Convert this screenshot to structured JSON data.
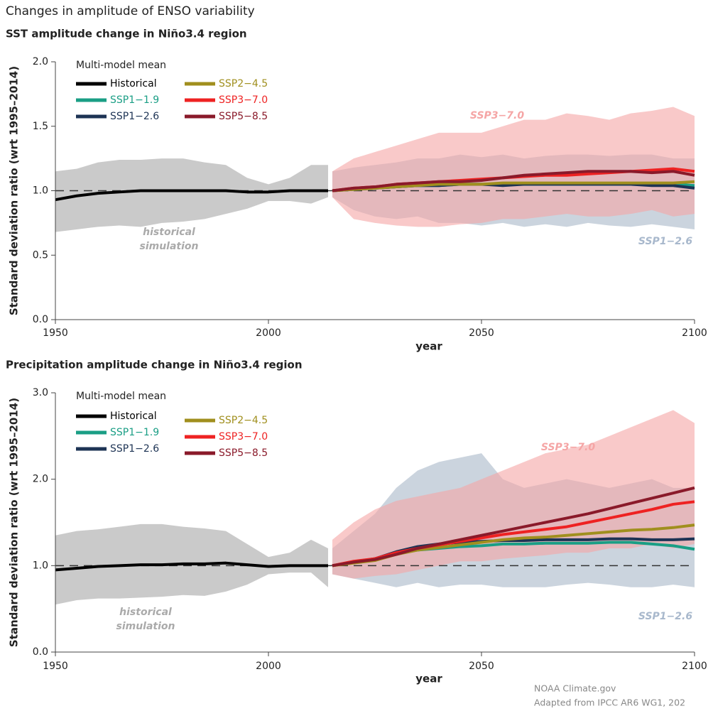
{
  "title": "Changes in amplitude of ENSO variability",
  "credit": [
    "NOAA Climate.gov",
    "Adapted from IPCC AR6 WG1, 202"
  ],
  "chart_data": [
    {
      "type": "line",
      "title": "SST amplitude change in Niño3.4 region",
      "xlabel": "year",
      "ylabel": "Standard deviation ratio (wrt 1995–2014)",
      "legend_title": "Multi-model mean",
      "xlim": [
        1950,
        2100
      ],
      "xticks": [
        1950,
        2000,
        2050,
        2100
      ],
      "ylim": [
        0,
        2
      ],
      "yticks": [
        {
          "value": 0,
          "label": "0.0"
        },
        {
          "value": 0.5,
          "label": "0.5"
        },
        {
          "value": 1,
          "label": "1.0"
        },
        {
          "value": 1.5,
          "label": "1.5"
        },
        {
          "value": 2,
          "label": "2.0"
        }
      ],
      "hline": 1,
      "bands": [
        {
          "label": [
            "historical",
            "simulation"
          ],
          "color": "#b8b8b8",
          "x": [
            1950,
            1955,
            1960,
            1965,
            1970,
            1975,
            1980,
            1985,
            1990,
            1995,
            2000,
            2005,
            2010,
            2014
          ],
          "lower": [
            0.68,
            0.7,
            0.72,
            0.73,
            0.72,
            0.75,
            0.76,
            0.78,
            0.82,
            0.86,
            0.92,
            0.92,
            0.9,
            0.95
          ],
          "upper": [
            1.15,
            1.17,
            1.22,
            1.24,
            1.24,
            1.25,
            1.25,
            1.22,
            1.2,
            1.1,
            1.05,
            1.1,
            1.2,
            1.2
          ]
        },
        {
          "label": [
            "SSP1−2.6"
          ],
          "color": "#b9c6d3",
          "x": [
            2015,
            2020,
            2025,
            2030,
            2035,
            2040,
            2045,
            2050,
            2055,
            2060,
            2065,
            2070,
            2075,
            2080,
            2085,
            2090,
            2095,
            2100
          ],
          "lower": [
            0.95,
            0.85,
            0.8,
            0.78,
            0.8,
            0.75,
            0.75,
            0.73,
            0.75,
            0.72,
            0.74,
            0.72,
            0.75,
            0.73,
            0.72,
            0.74,
            0.72,
            0.7
          ],
          "upper": [
            1.15,
            1.18,
            1.2,
            1.22,
            1.25,
            1.25,
            1.28,
            1.26,
            1.28,
            1.25,
            1.27,
            1.28,
            1.28,
            1.27,
            1.28,
            1.28,
            1.25,
            1.25
          ]
        },
        {
          "label": [
            "SSP3−7.0"
          ],
          "color": "#f5a5a5",
          "x": [
            2015,
            2020,
            2025,
            2030,
            2035,
            2040,
            2045,
            2050,
            2055,
            2060,
            2065,
            2070,
            2075,
            2080,
            2085,
            2090,
            2095,
            2100
          ],
          "lower": [
            0.95,
            0.78,
            0.75,
            0.73,
            0.72,
            0.72,
            0.74,
            0.75,
            0.78,
            0.78,
            0.8,
            0.82,
            0.8,
            0.8,
            0.82,
            0.85,
            0.8,
            0.82
          ],
          "upper": [
            1.15,
            1.25,
            1.3,
            1.35,
            1.4,
            1.45,
            1.45,
            1.45,
            1.5,
            1.55,
            1.55,
            1.6,
            1.58,
            1.55,
            1.6,
            1.62,
            1.65,
            1.58
          ]
        }
      ],
      "series": [
        {
          "name": "Historical",
          "color": "#000000",
          "x": [
            1950,
            1955,
            1960,
            1965,
            1970,
            1975,
            1980,
            1985,
            1990,
            1995,
            2000,
            2005,
            2010,
            2014
          ],
          "values": [
            0.93,
            0.96,
            0.98,
            0.99,
            1.0,
            1.0,
            1.0,
            1.0,
            1.0,
            0.99,
            0.99,
            1.0,
            1.0,
            1.0
          ]
        },
        {
          "name": "SSP1−1.9",
          "color": "#1a9e85",
          "x": [
            2015,
            2020,
            2025,
            2030,
            2035,
            2040,
            2045,
            2050,
            2055,
            2060,
            2065,
            2070,
            2075,
            2080,
            2085,
            2090,
            2095,
            2100
          ],
          "values": [
            1.0,
            1.01,
            1.02,
            1.03,
            1.04,
            1.04,
            1.05,
            1.05,
            1.05,
            1.05,
            1.05,
            1.05,
            1.05,
            1.05,
            1.05,
            1.05,
            1.05,
            1.04
          ]
        },
        {
          "name": "SSP1−2.6",
          "color": "#1d3354",
          "x": [
            2015,
            2020,
            2025,
            2030,
            2035,
            2040,
            2045,
            2050,
            2055,
            2060,
            2065,
            2070,
            2075,
            2080,
            2085,
            2090,
            2095,
            2100
          ],
          "values": [
            1.0,
            1.01,
            1.02,
            1.03,
            1.04,
            1.04,
            1.05,
            1.05,
            1.04,
            1.05,
            1.05,
            1.05,
            1.05,
            1.05,
            1.05,
            1.04,
            1.04,
            1.02
          ]
        },
        {
          "name": "SSP2−4.5",
          "color": "#a08f1e",
          "x": [
            2015,
            2020,
            2025,
            2030,
            2035,
            2040,
            2045,
            2050,
            2055,
            2060,
            2065,
            2070,
            2075,
            2080,
            2085,
            2090,
            2095,
            2100
          ],
          "values": [
            1.0,
            1.01,
            1.02,
            1.03,
            1.04,
            1.05,
            1.05,
            1.05,
            1.06,
            1.06,
            1.06,
            1.06,
            1.06,
            1.06,
            1.06,
            1.06,
            1.06,
            1.07
          ]
        },
        {
          "name": "SSP3−7.0",
          "color": "#ee2222",
          "x": [
            2015,
            2020,
            2025,
            2030,
            2035,
            2040,
            2045,
            2050,
            2055,
            2060,
            2065,
            2070,
            2075,
            2080,
            2085,
            2090,
            2095,
            2100
          ],
          "values": [
            1.0,
            1.02,
            1.03,
            1.05,
            1.06,
            1.07,
            1.08,
            1.09,
            1.1,
            1.11,
            1.12,
            1.12,
            1.13,
            1.14,
            1.15,
            1.16,
            1.17,
            1.15
          ]
        },
        {
          "name": "SSP5−8.5",
          "color": "#8a1a2a",
          "x": [
            2015,
            2020,
            2025,
            2030,
            2035,
            2040,
            2045,
            2050,
            2055,
            2060,
            2065,
            2070,
            2075,
            2080,
            2085,
            2090,
            2095,
            2100
          ],
          "values": [
            1.0,
            1.02,
            1.03,
            1.05,
            1.06,
            1.07,
            1.07,
            1.08,
            1.1,
            1.12,
            1.13,
            1.14,
            1.15,
            1.15,
            1.15,
            1.14,
            1.15,
            1.12
          ]
        }
      ]
    },
    {
      "type": "line",
      "title": "Precipitation amplitude change in Niño3.4 region",
      "xlabel": "year",
      "ylabel": "Standard deviation ratio (wrt 1995–2014)",
      "legend_title": "Multi-model mean",
      "xlim": [
        1950,
        2100
      ],
      "xticks": [
        1950,
        2000,
        2050,
        2100
      ],
      "ylim": [
        0,
        3
      ],
      "yticks": [
        {
          "value": 0,
          "label": "0.0"
        },
        {
          "value": 1,
          "label": "1.0"
        },
        {
          "value": 2,
          "label": "2.0"
        },
        {
          "value": 3,
          "label": "3.0"
        }
      ],
      "hline": 1,
      "bands": [
        {
          "label": [
            "historical",
            "simulation"
          ],
          "color": "#b8b8b8",
          "x": [
            1950,
            1955,
            1960,
            1965,
            1970,
            1975,
            1980,
            1985,
            1990,
            1995,
            2000,
            2005,
            2010,
            2014
          ],
          "lower": [
            0.55,
            0.6,
            0.62,
            0.62,
            0.63,
            0.64,
            0.66,
            0.65,
            0.7,
            0.78,
            0.9,
            0.92,
            0.92,
            0.75
          ],
          "upper": [
            1.35,
            1.4,
            1.42,
            1.45,
            1.48,
            1.48,
            1.45,
            1.43,
            1.4,
            1.25,
            1.1,
            1.15,
            1.3,
            1.2
          ]
        },
        {
          "label": [
            "SSP1−2.6"
          ],
          "color": "#b9c6d3",
          "x": [
            2015,
            2020,
            2025,
            2030,
            2035,
            2040,
            2045,
            2050,
            2055,
            2060,
            2065,
            2070,
            2075,
            2080,
            2085,
            2090,
            2095,
            2100
          ],
          "lower": [
            0.9,
            0.85,
            0.8,
            0.75,
            0.8,
            0.75,
            0.78,
            0.78,
            0.75,
            0.75,
            0.75,
            0.78,
            0.8,
            0.78,
            0.75,
            0.75,
            0.78,
            0.75
          ],
          "upper": [
            1.2,
            1.4,
            1.6,
            1.9,
            2.1,
            2.2,
            2.25,
            2.3,
            2.0,
            1.9,
            1.95,
            2.0,
            1.95,
            1.9,
            1.95,
            2.0,
            1.9,
            1.9
          ]
        },
        {
          "label": [
            "SSP3−7.0"
          ],
          "color": "#f5a5a5",
          "x": [
            2015,
            2020,
            2025,
            2030,
            2035,
            2040,
            2045,
            2050,
            2055,
            2060,
            2065,
            2070,
            2075,
            2080,
            2085,
            2090,
            2095,
            2100
          ],
          "lower": [
            0.9,
            0.85,
            0.88,
            0.9,
            0.95,
            1.0,
            1.05,
            1.05,
            1.08,
            1.1,
            1.12,
            1.15,
            1.15,
            1.2,
            1.2,
            1.25,
            1.2,
            1.25
          ],
          "upper": [
            1.3,
            1.5,
            1.65,
            1.75,
            1.8,
            1.85,
            1.9,
            2.0,
            2.1,
            2.2,
            2.3,
            2.35,
            2.4,
            2.5,
            2.6,
            2.7,
            2.8,
            2.65
          ]
        }
      ],
      "series": [
        {
          "name": "Historical",
          "color": "#000000",
          "x": [
            1950,
            1955,
            1960,
            1965,
            1970,
            1975,
            1980,
            1985,
            1990,
            1995,
            2000,
            2005,
            2010,
            2014
          ],
          "values": [
            0.95,
            0.97,
            0.99,
            1.0,
            1.01,
            1.01,
            1.02,
            1.02,
            1.03,
            1.01,
            0.99,
            1.0,
            1.0,
            1.0
          ]
        },
        {
          "name": "SSP1−1.9",
          "color": "#1a9e85",
          "x": [
            2015,
            2020,
            2025,
            2030,
            2035,
            2040,
            2045,
            2050,
            2055,
            2060,
            2065,
            2070,
            2075,
            2080,
            2085,
            2090,
            2095,
            2100
          ],
          "values": [
            1.0,
            1.04,
            1.08,
            1.14,
            1.18,
            1.2,
            1.22,
            1.23,
            1.25,
            1.25,
            1.26,
            1.26,
            1.26,
            1.27,
            1.27,
            1.25,
            1.23,
            1.19
          ]
        },
        {
          "name": "SSP1−2.6",
          "color": "#1d3354",
          "x": [
            2015,
            2020,
            2025,
            2030,
            2035,
            2040,
            2045,
            2050,
            2055,
            2060,
            2065,
            2070,
            2075,
            2080,
            2085,
            2090,
            2095,
            2100
          ],
          "values": [
            1.0,
            1.04,
            1.08,
            1.16,
            1.22,
            1.25,
            1.27,
            1.28,
            1.29,
            1.29,
            1.3,
            1.3,
            1.3,
            1.31,
            1.31,
            1.3,
            1.3,
            1.31
          ]
        },
        {
          "name": "SSP2−4.5",
          "color": "#a08f1e",
          "x": [
            2015,
            2020,
            2025,
            2030,
            2035,
            2040,
            2045,
            2050,
            2055,
            2060,
            2065,
            2070,
            2075,
            2080,
            2085,
            2090,
            2095,
            2100
          ],
          "values": [
            1.0,
            1.03,
            1.06,
            1.13,
            1.18,
            1.21,
            1.24,
            1.27,
            1.3,
            1.32,
            1.33,
            1.35,
            1.37,
            1.39,
            1.41,
            1.42,
            1.44,
            1.47
          ]
        },
        {
          "name": "SSP3−7.0",
          "color": "#ee2222",
          "x": [
            2015,
            2020,
            2025,
            2030,
            2035,
            2040,
            2045,
            2050,
            2055,
            2060,
            2065,
            2070,
            2075,
            2080,
            2085,
            2090,
            2095,
            2100
          ],
          "values": [
            1.0,
            1.05,
            1.08,
            1.15,
            1.2,
            1.24,
            1.28,
            1.32,
            1.36,
            1.39,
            1.42,
            1.45,
            1.5,
            1.55,
            1.6,
            1.65,
            1.71,
            1.74
          ]
        },
        {
          "name": "SSP5−8.5",
          "color": "#8a1a2a",
          "x": [
            2015,
            2020,
            2025,
            2030,
            2035,
            2040,
            2045,
            2050,
            2055,
            2060,
            2065,
            2070,
            2075,
            2080,
            2085,
            2090,
            2095,
            2100
          ],
          "values": [
            1.0,
            1.04,
            1.07,
            1.13,
            1.2,
            1.25,
            1.3,
            1.35,
            1.4,
            1.45,
            1.5,
            1.55,
            1.6,
            1.66,
            1.72,
            1.78,
            1.84,
            1.9
          ]
        }
      ]
    }
  ]
}
